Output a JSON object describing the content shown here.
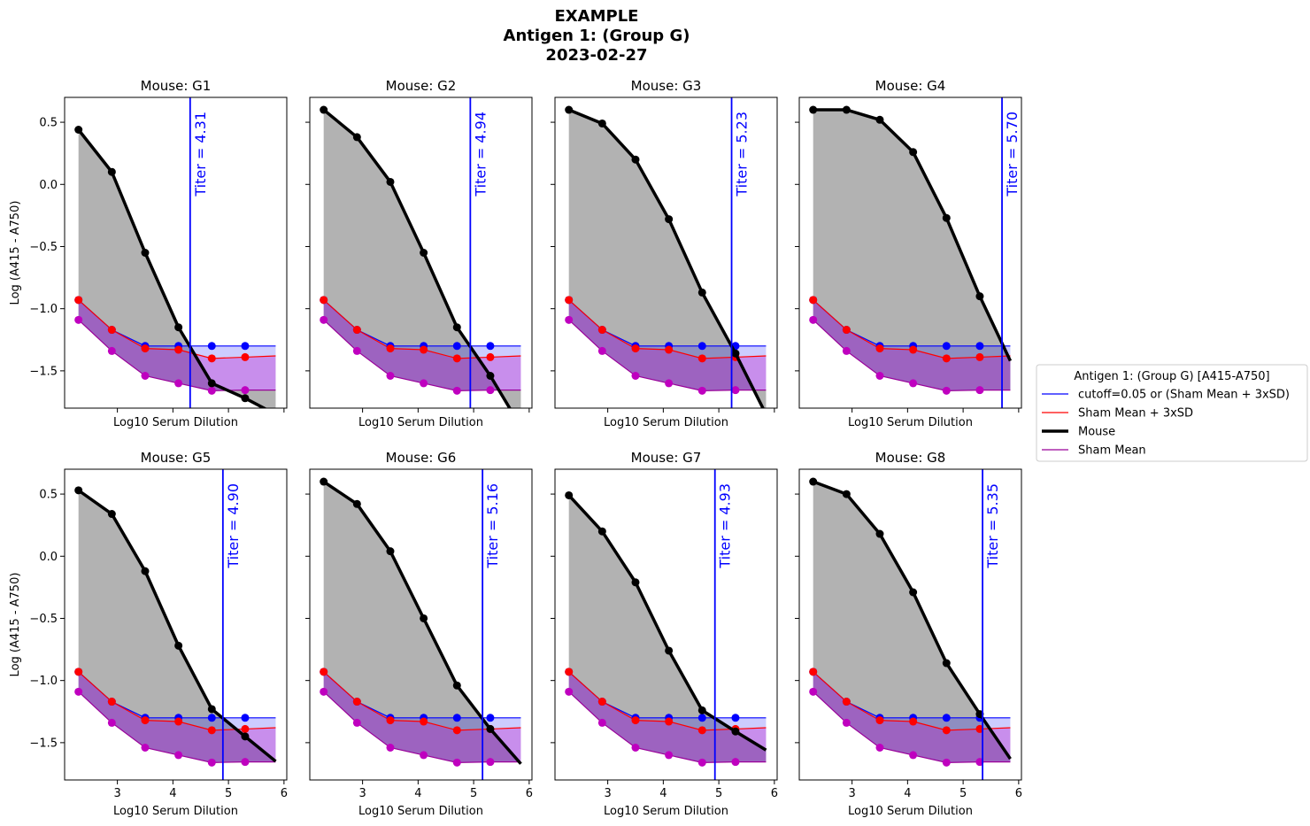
{
  "figure": {
    "title_lines": [
      "EXAMPLE",
      "Antigen 1: (Group G)",
      "2023-02-27"
    ]
  },
  "legend": {
    "title": "Antigen 1: (Group G) [A415-A750]",
    "entries": [
      {
        "label": "cutoff=0.05 or (Sham Mean + 3xSD)",
        "color": "#0000ff",
        "width": 1
      },
      {
        "label": "Sham Mean + 3xSD",
        "color": "#ff0000",
        "width": 1
      },
      {
        "label": "Mouse",
        "color": "#000000",
        "width": 3
      },
      {
        "label": "Sham Mean",
        "color": "#990099",
        "width": 1
      }
    ]
  },
  "chart_data": {
    "type": "line",
    "xlabel": "Log10 Serum Dilution",
    "ylabel": "Log (A415 - A750)",
    "xlim": [
      2.05,
      6.05
    ],
    "ylim": [
      -1.8,
      0.7
    ],
    "xticks": [
      3,
      4,
      5,
      6
    ],
    "yticks": [
      0.5,
      0.0,
      -0.5,
      -1.0,
      -1.5
    ],
    "xtick_labels": [
      "3",
      "4",
      "5",
      "6"
    ],
    "ytick_labels": [
      "0.5",
      "0.0",
      "−0.5",
      "−1.0",
      "−1.5"
    ],
    "x": [
      2.3,
      2.9,
      3.5,
      4.1,
      4.7,
      5.3
    ],
    "cutoff": [
      -0.93,
      -1.17,
      -1.3,
      -1.3,
      -1.3,
      -1.3
    ],
    "sham_mean_3sd": [
      -0.93,
      -1.17,
      -1.32,
      -1.33,
      -1.4,
      -1.39
    ],
    "sham_mean": [
      -1.09,
      -1.34,
      -1.54,
      -1.6,
      -1.66,
      -1.655
    ],
    "extend_x": 5.85,
    "extend_cutoff": -1.3,
    "extend_sham3sd": -1.38,
    "extend_sham": -1.655,
    "colors": {
      "cutoff": "#0000ff",
      "sham3sd": "#ff0000",
      "mouse": "#000000",
      "sham": "#990099",
      "sham_marker": "#bf00bf"
    },
    "panels": [
      {
        "title": "Mouse: G1",
        "titer": 4.31,
        "titer_label": "Titer = 4.31",
        "mouse": [
          [
            2.3,
            0.44
          ],
          [
            2.9,
            0.1
          ],
          [
            3.5,
            -0.55
          ],
          [
            4.1,
            -1.15
          ],
          [
            4.7,
            -1.6
          ],
          [
            5.3,
            -1.72
          ],
          [
            5.85,
            -1.85
          ]
        ]
      },
      {
        "title": "Mouse: G2",
        "titer": 4.94,
        "titer_label": "Titer = 4.94",
        "mouse": [
          [
            2.3,
            0.6
          ],
          [
            2.9,
            0.38
          ],
          [
            3.5,
            0.02
          ],
          [
            4.1,
            -0.55
          ],
          [
            4.7,
            -1.15
          ],
          [
            5.3,
            -1.54
          ],
          [
            5.85,
            -1.95
          ]
        ]
      },
      {
        "title": "Mouse: G3",
        "titer": 5.23,
        "titer_label": "Titer = 5.23",
        "mouse": [
          [
            2.3,
            0.6
          ],
          [
            2.9,
            0.49
          ],
          [
            3.5,
            0.2
          ],
          [
            4.1,
            -0.28
          ],
          [
            4.7,
            -0.87
          ],
          [
            5.3,
            -1.36
          ],
          [
            5.85,
            -1.85
          ]
        ]
      },
      {
        "title": "Mouse: G4",
        "titer": 5.7,
        "titer_label": "Titer = 5.70",
        "mouse": [
          [
            2.3,
            0.6
          ],
          [
            2.9,
            0.6
          ],
          [
            3.5,
            0.52
          ],
          [
            4.1,
            0.26
          ],
          [
            4.7,
            -0.27
          ],
          [
            5.3,
            -0.9
          ],
          [
            5.85,
            -1.42
          ]
        ]
      },
      {
        "title": "Mouse: G5",
        "titer": 4.9,
        "titer_label": "Titer = 4.90",
        "mouse": [
          [
            2.3,
            0.53
          ],
          [
            2.9,
            0.34
          ],
          [
            3.5,
            -0.12
          ],
          [
            4.1,
            -0.72
          ],
          [
            4.7,
            -1.23
          ],
          [
            5.3,
            -1.45
          ],
          [
            5.85,
            -1.65
          ]
        ]
      },
      {
        "title": "Mouse: G6",
        "titer": 5.16,
        "titer_label": "Titer = 5.16",
        "mouse": [
          [
            2.3,
            0.6
          ],
          [
            2.9,
            0.42
          ],
          [
            3.5,
            0.04
          ],
          [
            4.1,
            -0.5
          ],
          [
            4.7,
            -1.04
          ],
          [
            5.3,
            -1.39
          ],
          [
            5.85,
            -1.67
          ]
        ]
      },
      {
        "title": "Mouse: G7",
        "titer": 4.93,
        "titer_label": "Titer = 4.93",
        "mouse": [
          [
            2.3,
            0.49
          ],
          [
            2.9,
            0.2
          ],
          [
            3.5,
            -0.21
          ],
          [
            4.1,
            -0.76
          ],
          [
            4.7,
            -1.24
          ],
          [
            5.3,
            -1.41
          ],
          [
            5.85,
            -1.56
          ]
        ]
      },
      {
        "title": "Mouse: G8",
        "titer": 5.35,
        "titer_label": "Titer = 5.35",
        "mouse": [
          [
            2.3,
            0.6
          ],
          [
            2.9,
            0.5
          ],
          [
            3.5,
            0.18
          ],
          [
            4.1,
            -0.29
          ],
          [
            4.7,
            -0.86
          ],
          [
            5.3,
            -1.27
          ],
          [
            5.85,
            -1.63
          ]
        ]
      }
    ]
  }
}
